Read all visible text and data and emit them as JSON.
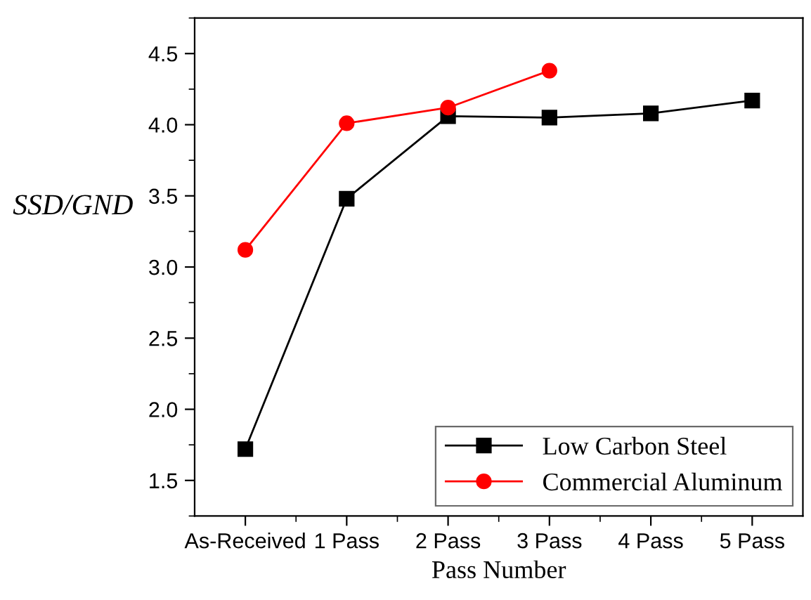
{
  "chart_data": {
    "type": "line",
    "xlabel": "Pass Number",
    "ylabel": "SSD/GND",
    "categories": [
      "As-Received",
      "1 Pass",
      "2 Pass",
      "3 Pass",
      "4 Pass",
      "5 Pass"
    ],
    "series": [
      {
        "name": "Low Carbon Steel",
        "color": "#000000",
        "marker": "square",
        "values": [
          1.72,
          3.48,
          4.06,
          4.05,
          4.08,
          4.17
        ]
      },
      {
        "name": "Commercial Aluminum",
        "color": "#ff0000",
        "marker": "circle",
        "values": [
          3.12,
          4.01,
          4.12,
          4.38,
          null,
          null
        ]
      }
    ],
    "ylim": [
      1.25,
      4.75
    ],
    "yticks": [
      1.5,
      {
        "value": 2,
        "label": "2.0"
      },
      2.5,
      {
        "value": 3,
        "label": "3.0"
      },
      3.5,
      {
        "value": 4,
        "label": "4.0"
      },
      4.5
    ],
    "grid": false,
    "legend": "bottom right",
    "line_style": "solid"
  }
}
